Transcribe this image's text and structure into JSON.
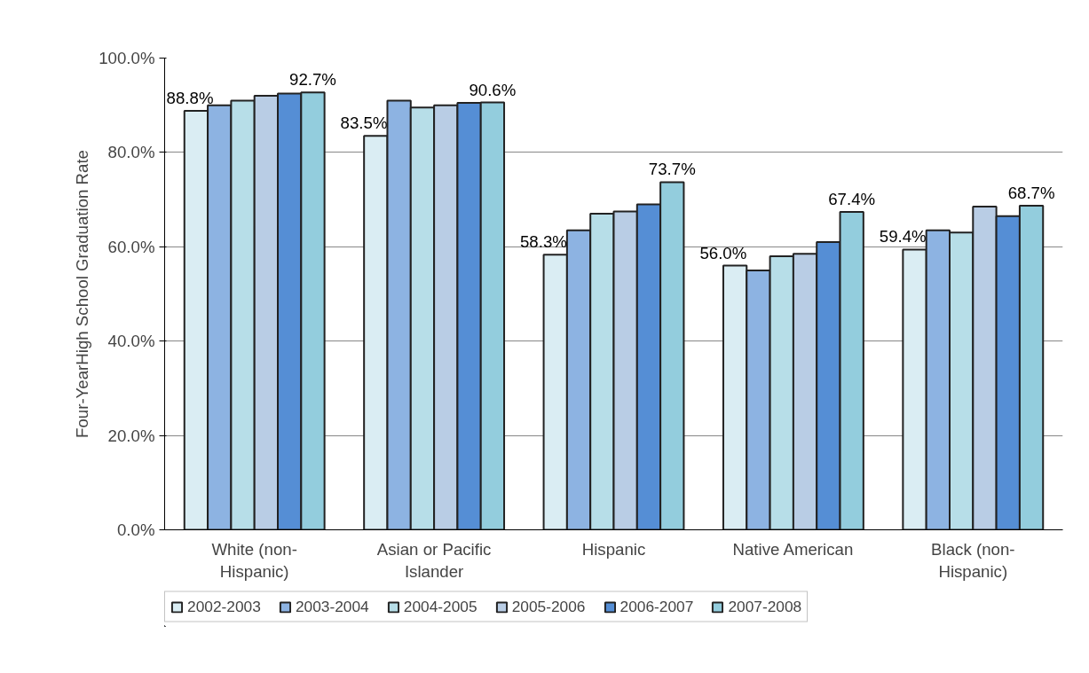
{
  "chart_data": {
    "type": "bar",
    "ylabel": "Four-YearHigh School Graduation Rate",
    "categories": [
      "White (non-Hispanic)",
      "Asian or Pacific Islander",
      "Hispanic",
      "Native American",
      "Black (non-Hispanic)"
    ],
    "series": [
      {
        "name": "2002-2003",
        "color": "#daedf3",
        "values": [
          88.8,
          83.5,
          58.3,
          56.0,
          59.4
        ],
        "value_labels": [
          "88.8%",
          "83.5%",
          "58.3%",
          "56.0%",
          "59.4%"
        ]
      },
      {
        "name": "2003-2004",
        "color": "#8db3e2",
        "values": [
          90,
          91,
          63.5,
          55,
          63.5
        ]
      },
      {
        "name": "2004-2005",
        "color": "#b7dee8",
        "values": [
          91,
          89.5,
          67,
          58,
          63
        ]
      },
      {
        "name": "2005-2006",
        "color": "#b9cde5",
        "values": [
          92,
          90,
          67.5,
          58.5,
          68.5
        ]
      },
      {
        "name": "2006-2007",
        "color": "#558ed5",
        "values": [
          92.5,
          90.5,
          69,
          61,
          66.5
        ]
      },
      {
        "name": "2007-2008",
        "color": "#93cddd",
        "values": [
          92.7,
          90.6,
          73.7,
          67.4,
          68.7
        ],
        "value_labels": [
          "92.7%",
          "90.6%",
          "73.7%",
          "67.4%",
          "68.7%"
        ]
      }
    ],
    "ylim": [
      0,
      100
    ],
    "yticks": [
      {
        "value": 0,
        "label": "0.0%"
      },
      {
        "value": 20,
        "label": "20.0%"
      },
      {
        "value": 40,
        "label": "40.0%"
      },
      {
        "value": 60,
        "label": "60.0%"
      },
      {
        "value": 80,
        "label": "80.0%"
      },
      {
        "value": 100,
        "label": "100.0%"
      }
    ],
    "grid": "y",
    "legend": "bottom"
  }
}
